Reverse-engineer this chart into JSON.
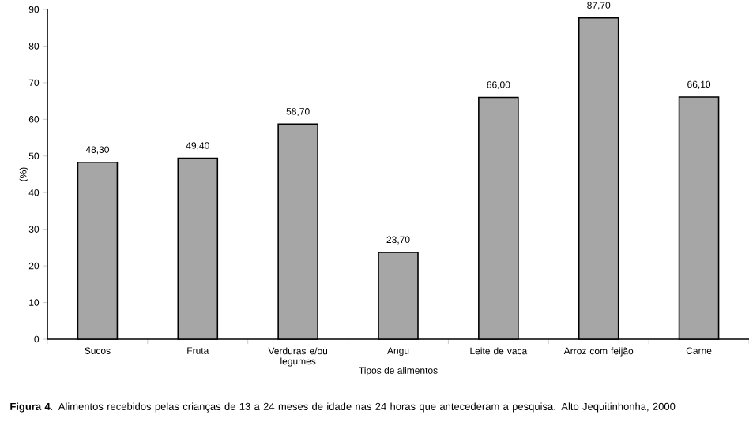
{
  "chart_data": {
    "type": "bar",
    "categories": [
      "Sucos",
      "Fruta",
      "Verduras e/ou legumes",
      "Angu",
      "Leite de vaca",
      "Arroz com feijão",
      "Carne"
    ],
    "values": [
      48.3,
      49.4,
      58.7,
      23.7,
      66.0,
      87.7,
      66.1
    ],
    "value_labels": [
      "48,30",
      "49,40",
      "58,70",
      "23,70",
      "66,00",
      "87,70",
      "66,10"
    ],
    "color": "#a6a6a6",
    "xlabel": "Tipos de alimentos",
    "ylabel": "(%)",
    "ylim": [
      0,
      90
    ],
    "yticks": [
      0,
      10,
      20,
      30,
      40,
      50,
      60,
      70,
      80,
      90
    ],
    "grid": false,
    "annotations": [
      "**Figura 4**. Alimentos recebidos pelas crianças de 13 a 24 meses de idade nas 24 horas que antecederam a pesquisa. Alto Jequitinhonha, 2000"
    ]
  }
}
